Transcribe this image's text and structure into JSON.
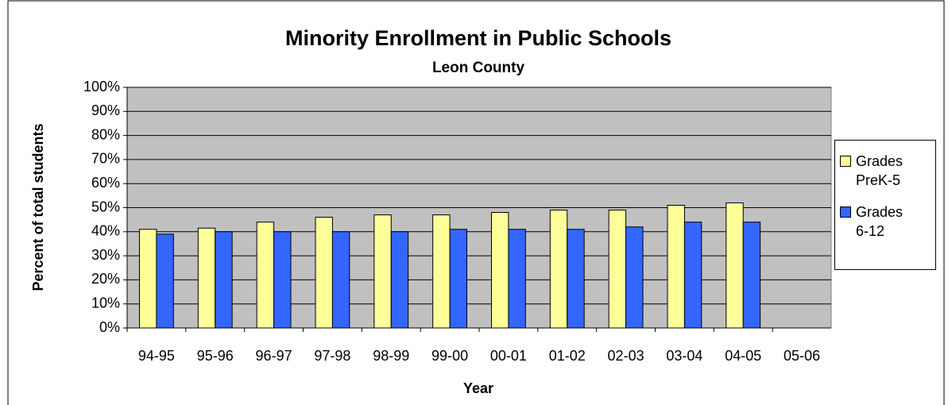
{
  "chart_data": {
    "type": "bar",
    "title": "Minority Enrollment in Public Schools",
    "subtitle": "Leon County",
    "x_label": "Year",
    "y_label": "Percent of total students",
    "categories": [
      "94-95",
      "95-96",
      "96-97",
      "97-98",
      "98-99",
      "99-00",
      "00-01",
      "01-02",
      "02-03",
      "03-04",
      "04-05",
      "05-06"
    ],
    "series": [
      {
        "name": "Grades PreK-5",
        "color": "#ffff99",
        "values": [
          41,
          41.5,
          44,
          46,
          47,
          47,
          48,
          49,
          49,
          51,
          52,
          null
        ]
      },
      {
        "name": "Grades 6-12",
        "color": "#3366ff",
        "values": [
          39,
          40,
          40,
          40,
          40,
          41,
          41,
          41,
          42,
          44,
          44,
          null
        ]
      }
    ],
    "ylim": [
      0,
      100
    ],
    "yticks": [
      {
        "value": 0,
        "label": "0%"
      },
      {
        "value": 10,
        "label": "10%"
      },
      {
        "value": 20,
        "label": "20%"
      },
      {
        "value": 30,
        "label": "30%"
      },
      {
        "value": 40,
        "label": "40%"
      },
      {
        "value": 50,
        "label": "50%"
      },
      {
        "value": 60,
        "label": "60%"
      },
      {
        "value": 70,
        "label": "70%"
      },
      {
        "value": 80,
        "label": "80%"
      },
      {
        "value": 90,
        "label": "90%"
      },
      {
        "value": 100,
        "label": "100%"
      }
    ],
    "grid": true,
    "plot_background": "#c0c0c0",
    "legend_position": "right"
  }
}
